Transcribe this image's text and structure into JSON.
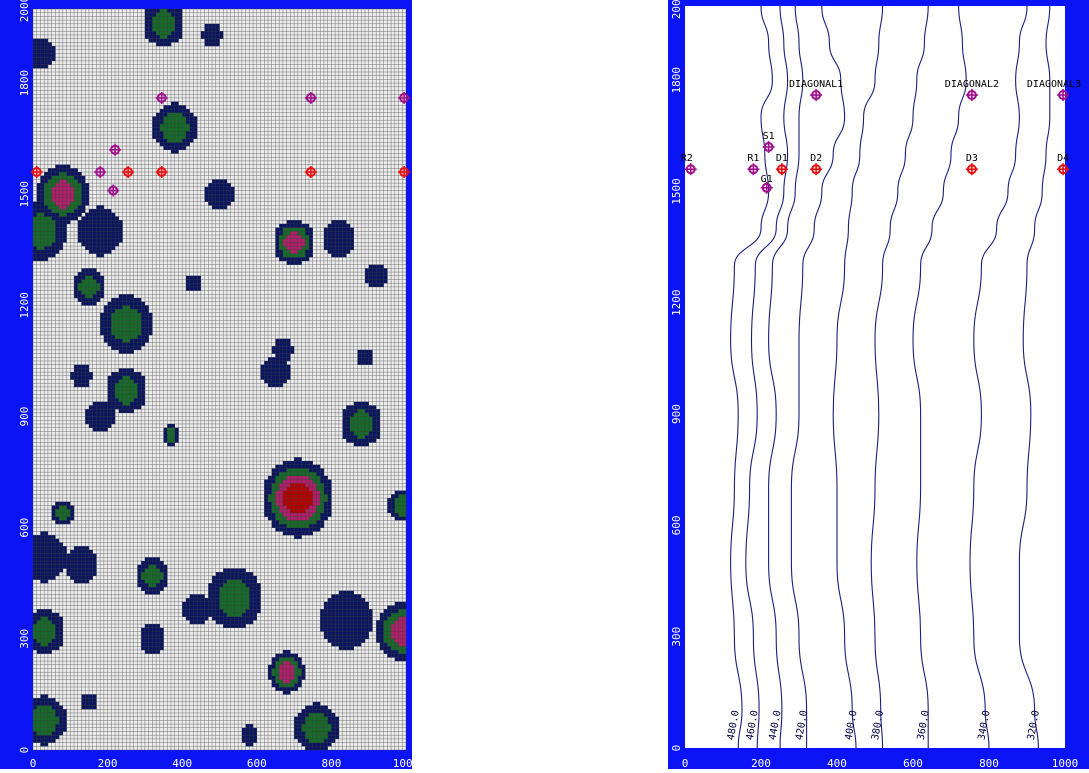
{
  "colors": {
    "frame": "#0a14f5",
    "grid_bg": "#ececec",
    "grid_line": "#3a3a3a",
    "cell_low": "#0a1560",
    "cell_mid": "#166b2a",
    "cell_high": "#b0206a",
    "cell_peak": "#b80000",
    "contour": "#1b1f7a",
    "well_purple": "#a0108c",
    "well_red": "#e81010"
  },
  "chart_data": [
    {
      "type": "heatmap",
      "name": "grid-map",
      "xlim": [
        0,
        1000
      ],
      "ylim": [
        0,
        2000
      ],
      "x_ticks": [
        "0",
        "200",
        "400",
        "600",
        "800",
        "1000"
      ],
      "y_ticks": [
        "0",
        "300",
        "600",
        "900",
        "1200",
        "1500",
        "1800",
        "2000"
      ],
      "grid_columns": 100,
      "grid_rows": 200,
      "blobs": [
        {
          "x": 350,
          "y": 1960,
          "r": 55,
          "level": 2
        },
        {
          "x": 20,
          "y": 1880,
          "r": 40,
          "level": 1
        },
        {
          "x": 480,
          "y": 1930,
          "r": 28,
          "level": 1
        },
        {
          "x": 380,
          "y": 1680,
          "r": 60,
          "level": 2
        },
        {
          "x": 80,
          "y": 1500,
          "r": 70,
          "level": 3
        },
        {
          "x": 20,
          "y": 1400,
          "r": 70,
          "level": 2
        },
        {
          "x": 180,
          "y": 1400,
          "r": 60,
          "level": 1
        },
        {
          "x": 150,
          "y": 1250,
          "r": 45,
          "level": 2
        },
        {
          "x": 250,
          "y": 1150,
          "r": 70,
          "level": 2
        },
        {
          "x": 700,
          "y": 1370,
          "r": 55,
          "level": 3
        },
        {
          "x": 820,
          "y": 1380,
          "r": 45,
          "level": 1
        },
        {
          "x": 500,
          "y": 1500,
          "r": 40,
          "level": 1
        },
        {
          "x": 920,
          "y": 1280,
          "r": 30,
          "level": 1
        },
        {
          "x": 670,
          "y": 1080,
          "r": 28,
          "level": 1
        },
        {
          "x": 250,
          "y": 970,
          "r": 55,
          "level": 2
        },
        {
          "x": 180,
          "y": 900,
          "r": 40,
          "level": 1
        },
        {
          "x": 130,
          "y": 1010,
          "r": 28,
          "level": 1
        },
        {
          "x": 370,
          "y": 850,
          "r": 25,
          "level": 2
        },
        {
          "x": 650,
          "y": 1020,
          "r": 40,
          "level": 1
        },
        {
          "x": 880,
          "y": 880,
          "r": 55,
          "level": 2
        },
        {
          "x": 710,
          "y": 680,
          "r": 95,
          "level": 4
        },
        {
          "x": 990,
          "y": 660,
          "r": 40,
          "level": 2
        },
        {
          "x": 80,
          "y": 640,
          "r": 30,
          "level": 2
        },
        {
          "x": 30,
          "y": 520,
          "r": 60,
          "level": 1
        },
        {
          "x": 130,
          "y": 500,
          "r": 45,
          "level": 1
        },
        {
          "x": 320,
          "y": 470,
          "r": 45,
          "level": 2
        },
        {
          "x": 540,
          "y": 410,
          "r": 75,
          "level": 2
        },
        {
          "x": 440,
          "y": 380,
          "r": 40,
          "level": 1
        },
        {
          "x": 840,
          "y": 350,
          "r": 70,
          "level": 1
        },
        {
          "x": 990,
          "y": 320,
          "r": 70,
          "level": 3
        },
        {
          "x": 30,
          "y": 320,
          "r": 55,
          "level": 2
        },
        {
          "x": 320,
          "y": 300,
          "r": 35,
          "level": 1
        },
        {
          "x": 680,
          "y": 210,
          "r": 50,
          "level": 3
        },
        {
          "x": 760,
          "y": 60,
          "r": 60,
          "level": 2
        },
        {
          "x": 30,
          "y": 80,
          "r": 60,
          "level": 2
        },
        {
          "x": 580,
          "y": 40,
          "r": 25,
          "level": 1
        },
        {
          "x": 150,
          "y": 130,
          "r": 22,
          "level": 1
        },
        {
          "x": 430,
          "y": 1260,
          "r": 22,
          "level": 1
        },
        {
          "x": 890,
          "y": 1060,
          "r": 22,
          "level": 1
        }
      ],
      "wells": [
        {
          "label": "",
          "x": 10,
          "y": 1560,
          "color": "red"
        },
        {
          "label": "",
          "x": 180,
          "y": 1560,
          "color": "purple"
        },
        {
          "label": "",
          "x": 255,
          "y": 1560,
          "color": "red"
        },
        {
          "label": "",
          "x": 345,
          "y": 1560,
          "color": "red"
        },
        {
          "label": "",
          "x": 745,
          "y": 1560,
          "color": "red"
        },
        {
          "label": "",
          "x": 995,
          "y": 1560,
          "color": "red"
        },
        {
          "label": "",
          "x": 220,
          "y": 1620,
          "color": "purple"
        },
        {
          "label": "",
          "x": 215,
          "y": 1510,
          "color": "purple"
        },
        {
          "label": "",
          "x": 345,
          "y": 1760,
          "color": "purple"
        },
        {
          "label": "",
          "x": 745,
          "y": 1760,
          "color": "purple"
        },
        {
          "label": "",
          "x": 995,
          "y": 1760,
          "color": "purple"
        }
      ]
    },
    {
      "type": "contour",
      "name": "contour-map",
      "xlim": [
        0,
        1000
      ],
      "ylim": [
        0,
        2000
      ],
      "x_ticks": [
        "0",
        "200",
        "400",
        "600",
        "800",
        "1000"
      ],
      "y_ticks": [
        "0",
        "300",
        "600",
        "900",
        "1200",
        "1500",
        "1800",
        "2000"
      ],
      "contour_levels": [
        {
          "label": "480.0",
          "points": [
            [
              140,
              0
            ],
            [
              150,
              100
            ],
            [
              130,
              300
            ],
            [
              120,
              500
            ],
            [
              130,
              700
            ],
            [
              140,
              900
            ],
            [
              120,
              1100
            ],
            [
              130,
              1300
            ],
            [
              200,
              1400
            ],
            [
              220,
              1500
            ],
            [
              210,
              1600
            ],
            [
              200,
              1700
            ],
            [
              230,
              1800
            ],
            [
              220,
              1900
            ],
            [
              200,
              2000
            ]
          ]
        },
        {
          "label": "460.0",
          "points": [
            [
              190,
              0
            ],
            [
              195,
              100
            ],
            [
              180,
              300
            ],
            [
              160,
              500
            ],
            [
              170,
              700
            ],
            [
              190,
              900
            ],
            [
              175,
              1100
            ],
            [
              185,
              1300
            ],
            [
              240,
              1400
            ],
            [
              260,
              1500
            ],
            [
              270,
              1600
            ],
            [
              260,
              1700
            ],
            [
              270,
              1800
            ],
            [
              260,
              1900
            ],
            [
              250,
              2000
            ]
          ]
        },
        {
          "label": "440.0",
          "points": [
            [
              250,
              0
            ],
            [
              255,
              100
            ],
            [
              240,
              300
            ],
            [
              220,
              500
            ],
            [
              220,
              700
            ],
            [
              240,
              900
            ],
            [
              220,
              1100
            ],
            [
              230,
              1300
            ],
            [
              270,
              1400
            ],
            [
              290,
              1500
            ],
            [
              300,
              1600
            ],
            [
              300,
              1700
            ],
            [
              310,
              1800
            ],
            [
              300,
              1900
            ],
            [
              290,
              2000
            ]
          ]
        },
        {
          "label": "420.0",
          "points": [
            [
              320,
              0
            ],
            [
              320,
              100
            ],
            [
              300,
              300
            ],
            [
              280,
              500
            ],
            [
              280,
              700
            ],
            [
              300,
              900
            ],
            [
              300,
              1100
            ],
            [
              310,
              1300
            ],
            [
              340,
              1400
            ],
            [
              360,
              1500
            ],
            [
              390,
              1600
            ],
            [
              420,
              1700
            ],
            [
              410,
              1800
            ],
            [
              380,
              1900
            ],
            [
              360,
              2000
            ]
          ]
        },
        {
          "label": "400.0",
          "points": [
            [
              450,
              0
            ],
            [
              440,
              100
            ],
            [
              420,
              300
            ],
            [
              400,
              500
            ],
            [
              400,
              700
            ],
            [
              390,
              900
            ],
            [
              400,
              1100
            ],
            [
              420,
              1300
            ],
            [
              430,
              1400
            ],
            [
              440,
              1500
            ],
            [
              460,
              1600
            ],
            [
              470,
              1700
            ],
            [
              500,
              1800
            ],
            [
              510,
              1900
            ],
            [
              520,
              2000
            ]
          ]
        },
        {
          "label": "380.0",
          "points": [
            [
              520,
              0
            ],
            [
              515,
              100
            ],
            [
              500,
              300
            ],
            [
              490,
              500
            ],
            [
              500,
              700
            ],
            [
              510,
              900
            ],
            [
              500,
              1100
            ],
            [
              520,
              1300
            ],
            [
              540,
              1400
            ],
            [
              560,
              1500
            ],
            [
              580,
              1600
            ],
            [
              600,
              1700
            ],
            [
              610,
              1800
            ],
            [
              630,
              1900
            ],
            [
              640,
              2000
            ]
          ]
        },
        {
          "label": "360.0",
          "points": [
            [
              640,
              0
            ],
            [
              640,
              100
            ],
            [
              620,
              300
            ],
            [
              610,
              500
            ],
            [
              620,
              700
            ],
            [
              620,
              900
            ],
            [
              600,
              1100
            ],
            [
              620,
              1300
            ],
            [
              650,
              1400
            ],
            [
              680,
              1500
            ],
            [
              700,
              1600
            ],
            [
              720,
              1700
            ],
            [
              740,
              1800
            ],
            [
              730,
              1900
            ],
            [
              720,
              2000
            ]
          ]
        },
        {
          "label": "340.0",
          "points": [
            [
              800,
              0
            ],
            [
              790,
              100
            ],
            [
              760,
              300
            ],
            [
              750,
              500
            ],
            [
              760,
              700
            ],
            [
              780,
              900
            ],
            [
              760,
              1100
            ],
            [
              780,
              1300
            ],
            [
              820,
              1400
            ],
            [
              850,
              1500
            ],
            [
              870,
              1600
            ],
            [
              880,
              1700
            ],
            [
              870,
              1800
            ],
            [
              880,
              1900
            ],
            [
              900,
              2000
            ]
          ]
        },
        {
          "label": "320.0",
          "points": [
            [
              930,
              0
            ],
            [
              920,
              100
            ],
            [
              880,
              300
            ],
            [
              880,
              500
            ],
            [
              900,
              700
            ],
            [
              910,
              900
            ],
            [
              890,
              1100
            ],
            [
              900,
              1300
            ],
            [
              920,
              1400
            ],
            [
              940,
              1500
            ],
            [
              950,
              1600
            ],
            [
              960,
              1700
            ],
            [
              960,
              1800
            ],
            [
              950,
              1900
            ],
            [
              960,
              2000
            ]
          ]
        }
      ],
      "wells": [
        {
          "label": "R2",
          "x": 15,
          "y": 1560,
          "color": "purple"
        },
        {
          "label": "R1",
          "x": 180,
          "y": 1560,
          "color": "purple"
        },
        {
          "label": "D1",
          "x": 255,
          "y": 1560,
          "color": "red"
        },
        {
          "label": "D2",
          "x": 345,
          "y": 1560,
          "color": "red"
        },
        {
          "label": "D3",
          "x": 755,
          "y": 1560,
          "color": "red"
        },
        {
          "label": "D4",
          "x": 995,
          "y": 1560,
          "color": "red"
        },
        {
          "label": "S1",
          "x": 220,
          "y": 1620,
          "color": "purple"
        },
        {
          "label": "G1",
          "x": 215,
          "y": 1510,
          "color": "purple"
        },
        {
          "label": "DIAGONAL1",
          "x": 345,
          "y": 1760,
          "color": "purple"
        },
        {
          "label": "DIAGONAL2",
          "x": 755,
          "y": 1760,
          "color": "purple"
        },
        {
          "label": "DIAGONAL3",
          "x": 995,
          "y": 1760,
          "color": "purple"
        }
      ]
    }
  ]
}
